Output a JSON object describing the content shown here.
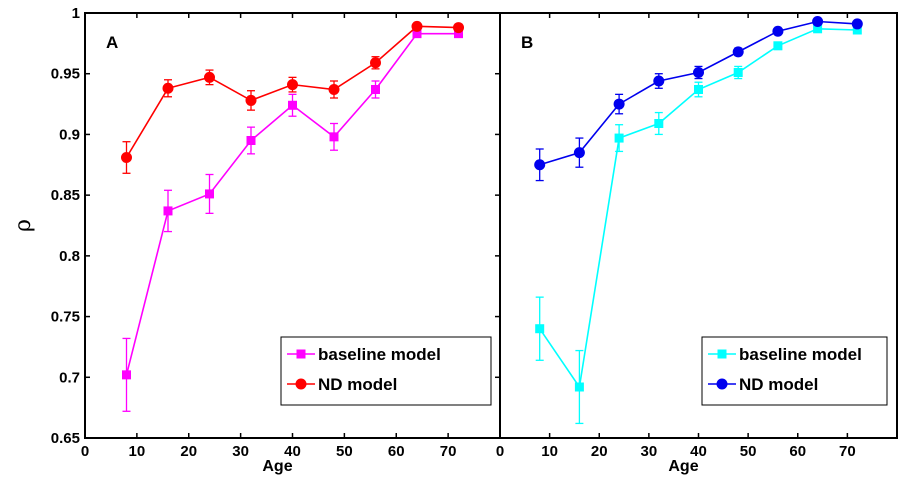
{
  "chart_data": [
    {
      "type": "line",
      "panel_label": "A",
      "xlabel": "Age",
      "ylabel": "ρ",
      "xlim": [
        0,
        80
      ],
      "ylim": [
        0.65,
        1
      ],
      "xticks": [
        "0",
        "10",
        "20",
        "30",
        "40",
        "50",
        "60",
        "70"
      ],
      "yticks": [
        "0.65",
        "0.7",
        "0.75",
        "0.8",
        "0.85",
        "0.9",
        "0.95",
        "1"
      ],
      "legend_position": "bottom-right",
      "series": [
        {
          "name": "baseline model",
          "color": "#ff00ff",
          "marker": "square",
          "x": [
            8,
            16,
            24,
            32,
            40,
            48,
            56,
            64,
            72
          ],
          "y": [
            0.702,
            0.837,
            0.851,
            0.895,
            0.924,
            0.898,
            0.937,
            0.983,
            0.983
          ],
          "err": [
            0.03,
            0.017,
            0.016,
            0.011,
            0.009,
            0.011,
            0.007,
            0.003,
            0.003
          ]
        },
        {
          "name": "ND model",
          "color": "#ff0000",
          "marker": "circle",
          "x": [
            8,
            16,
            24,
            32,
            40,
            48,
            56,
            64,
            72
          ],
          "y": [
            0.881,
            0.938,
            0.947,
            0.928,
            0.941,
            0.937,
            0.959,
            0.989,
            0.988
          ],
          "err": [
            0.013,
            0.007,
            0.006,
            0.008,
            0.006,
            0.007,
            0.005,
            0.002,
            0.002
          ]
        }
      ]
    },
    {
      "type": "line",
      "panel_label": "B",
      "xlabel": "Age",
      "ylabel": "",
      "xlim": [
        0,
        80
      ],
      "ylim": [
        0.65,
        1
      ],
      "xticks": [
        "0",
        "10",
        "20",
        "30",
        "40",
        "50",
        "60",
        "70"
      ],
      "yticks": [],
      "legend_position": "bottom-right",
      "series": [
        {
          "name": "baseline model",
          "color": "#00ffff",
          "marker": "square",
          "x": [
            8,
            16,
            24,
            32,
            40,
            48,
            56,
            64,
            72
          ],
          "y": [
            0.74,
            0.692,
            0.897,
            0.909,
            0.937,
            0.951,
            0.973,
            0.987,
            0.986
          ],
          "err": [
            0.026,
            0.03,
            0.011,
            0.009,
            0.006,
            0.005,
            0.003,
            0.002,
            0.002
          ]
        },
        {
          "name": "ND model",
          "color": "#0000ee",
          "marker": "circle",
          "x": [
            8,
            16,
            24,
            32,
            40,
            48,
            56,
            64,
            72
          ],
          "y": [
            0.875,
            0.885,
            0.925,
            0.944,
            0.951,
            0.968,
            0.985,
            0.993,
            0.991
          ],
          "err": [
            0.013,
            0.012,
            0.008,
            0.006,
            0.005,
            0.003,
            0.002,
            0.002,
            0.002
          ]
        }
      ]
    }
  ]
}
